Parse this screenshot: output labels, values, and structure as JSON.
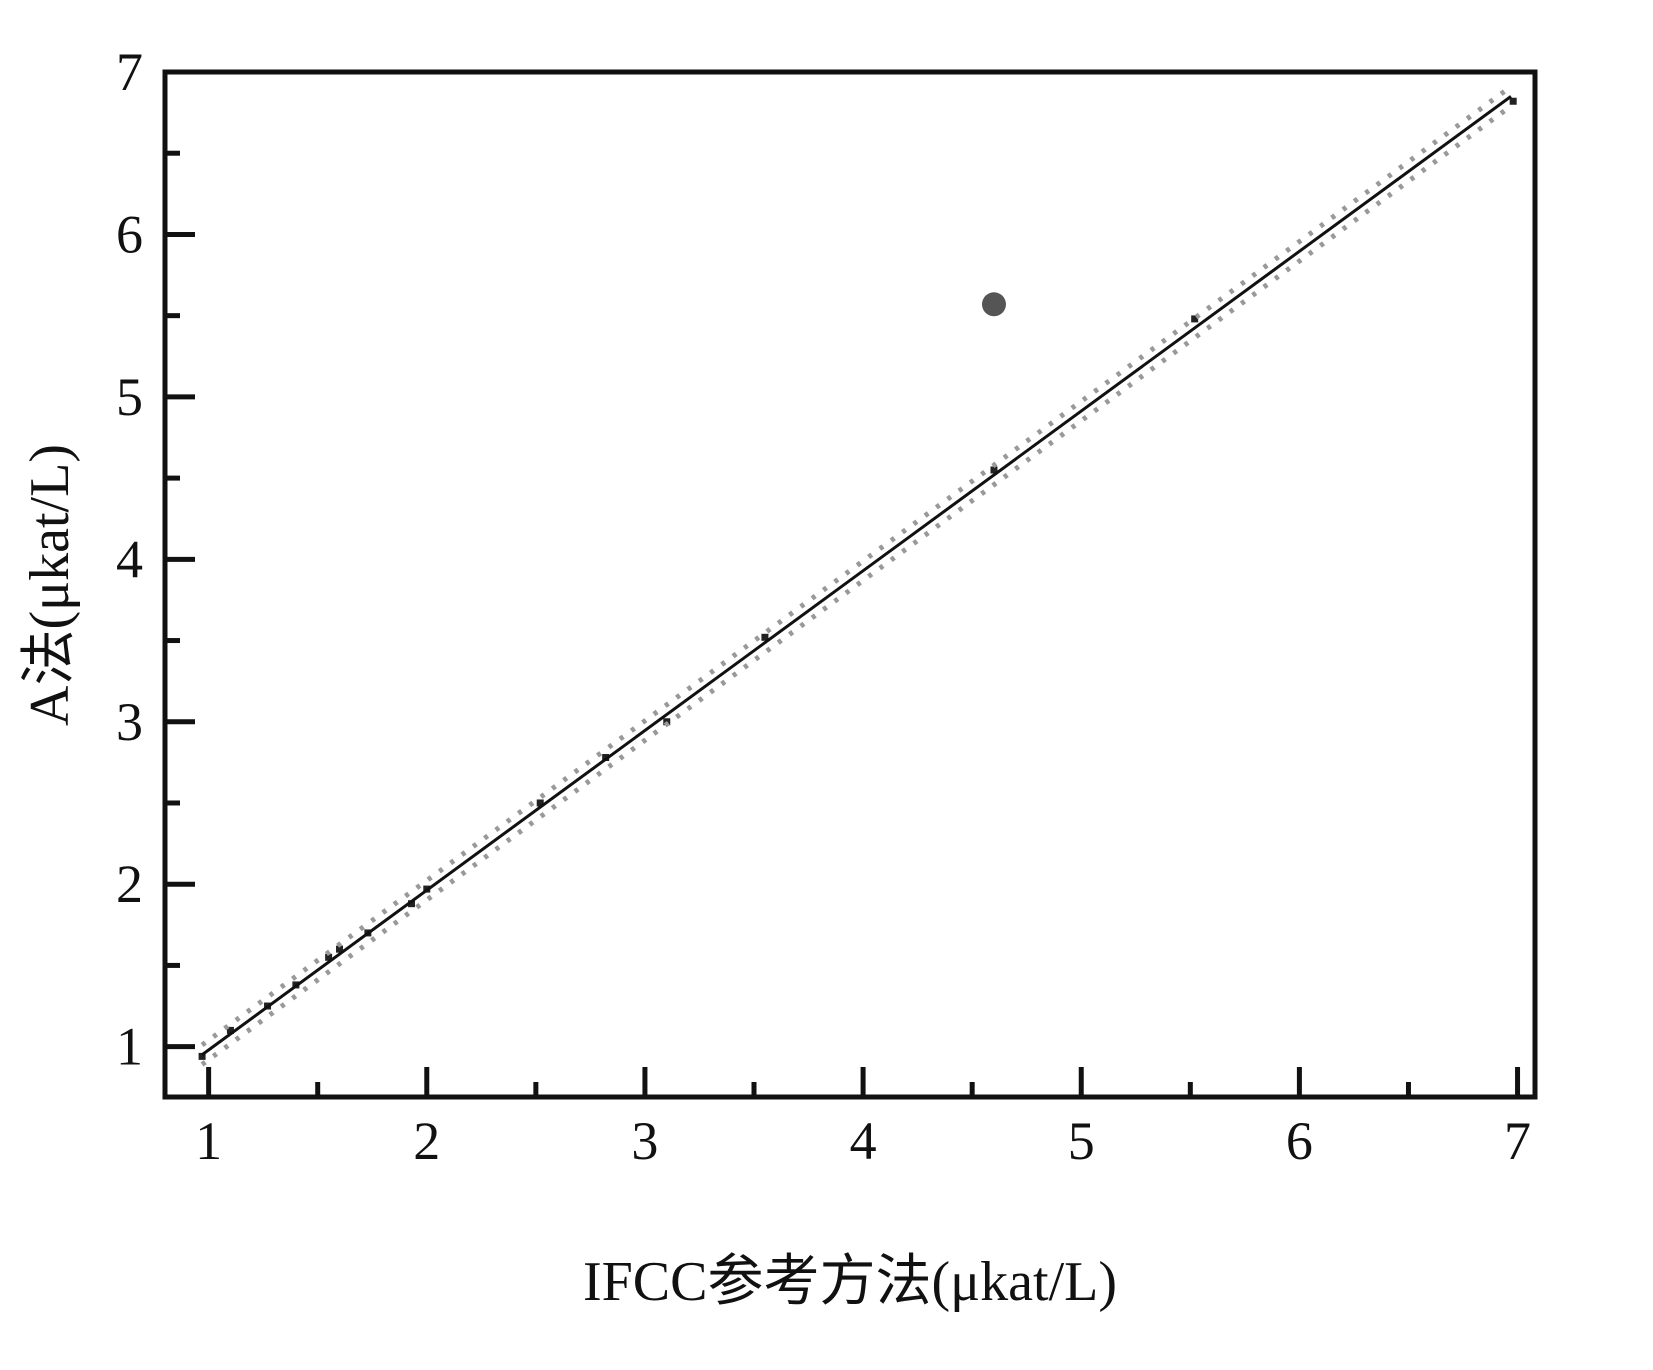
{
  "chart_data": {
    "type": "scatter",
    "x_label": "IFCC参考方法(μkat/L)",
    "y_label": "A法(μkat/L)",
    "xlim": [
      0.8,
      7.08
    ],
    "ylim": [
      0.69,
      7
    ],
    "xticks": [
      1,
      2,
      3,
      4,
      5,
      6,
      7
    ],
    "yticks": [
      1,
      2,
      3,
      4,
      5,
      6,
      7
    ],
    "xminorticks": [
      1.5,
      2.5,
      3.5,
      4.5,
      5.5,
      6.5
    ],
    "yminorticks": [
      1.5,
      2.5,
      3.5,
      4.5,
      5.5,
      6.5
    ],
    "series": [
      {
        "color": "#222222",
        "marker": "square",
        "x": [
          0.97,
          1.1,
          1.27,
          1.4,
          1.55,
          1.6,
          1.73,
          1.93,
          2.0,
          2.52,
          2.82,
          3.1,
          3.55,
          4.6,
          5.52,
          6.98
        ],
        "y": [
          0.94,
          1.1,
          1.25,
          1.38,
          1.55,
          1.6,
          1.7,
          1.88,
          1.97,
          2.5,
          2.78,
          3.0,
          3.52,
          4.55,
          5.48,
          6.82
        ]
      },
      {
        "color": "#555555",
        "marker": "circle",
        "x": [
          4.6
        ],
        "y": [
          5.57
        ]
      },
      {
        "color": "#111111",
        "line": "solid",
        "x": [
          0.97,
          6.97
        ],
        "y": [
          0.95,
          6.85
        ]
      },
      {
        "color": "#999999",
        "line": "dotted",
        "x": [
          0.97,
          6.97
        ],
        "y": [
          1.01,
          6.91
        ]
      },
      {
        "color": "#999999",
        "line": "dotted",
        "x": [
          0.97,
          6.97
        ],
        "y": [
          0.89,
          6.79
        ]
      }
    ]
  }
}
